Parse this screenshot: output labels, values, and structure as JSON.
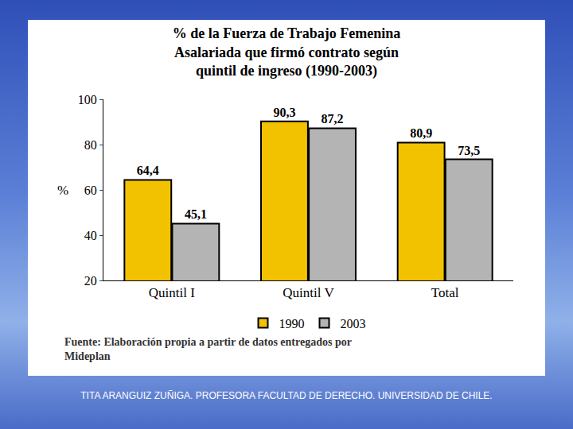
{
  "chart_data": {
    "type": "bar",
    "title": "% de la Fuerza de Trabajo Femenina Asalariada que firmó contrato según quintil de ingreso (1990-2003)",
    "y_label": "%",
    "categories": [
      "Quintil I",
      "Quintil V",
      "Total"
    ],
    "series": [
      {
        "name": "1990",
        "color": "#f2c200",
        "values": [
          64.4,
          90.3,
          80.9
        ],
        "value_labels": [
          "64,4",
          "90,3",
          "80,9"
        ]
      },
      {
        "name": "2003",
        "color": "#b4b4b4",
        "values": [
          45.1,
          87.2,
          73.5
        ],
        "value_labels": [
          "45,1",
          "87,2",
          "73,5"
        ]
      }
    ],
    "ylim": [
      20,
      100
    ],
    "yticks": [
      20,
      40,
      60,
      80,
      100
    ],
    "grid": false,
    "legend": "bottom",
    "data_labels": true,
    "source": "Fuente: Elaboración propia a partir de datos entregados por Mideplan"
  },
  "footer": "TITA ARANGUIZ ZUÑIGA. PROFESORA FACULTAD DE DERECHO. UNIVERSIDAD DE CHILE."
}
